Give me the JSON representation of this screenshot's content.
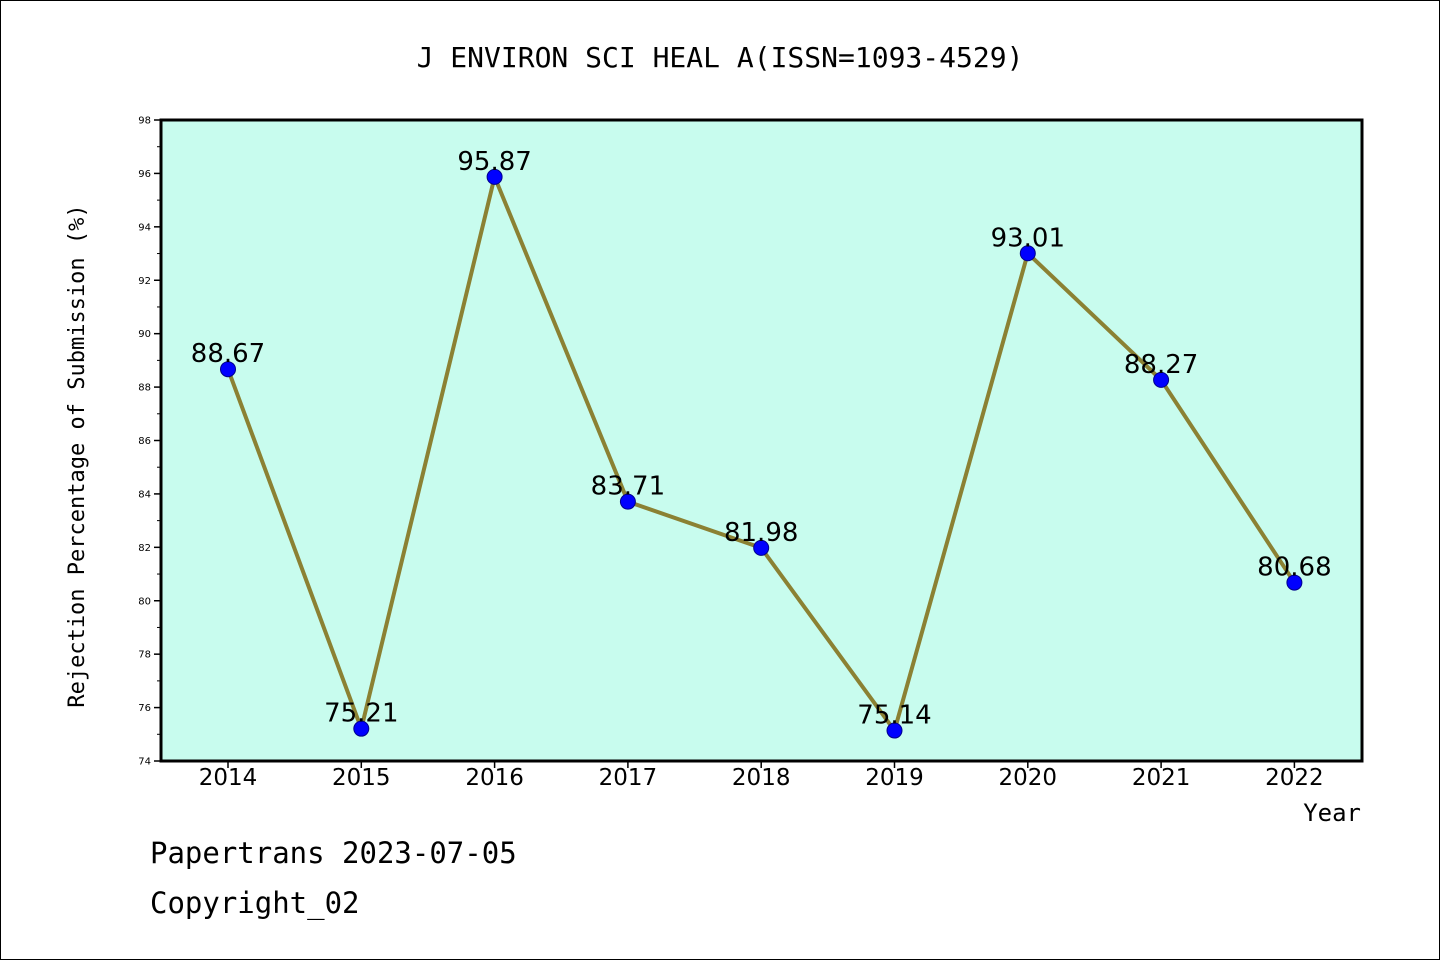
{
  "chart_data": {
    "type": "line",
    "title": "J ENVIRON SCI HEAL A(ISSN=1093-4529)",
    "xlabel": "Year",
    "ylabel": "Rejection Percentage of Submission (%)",
    "categories": [
      "2014",
      "2015",
      "2016",
      "2017",
      "2018",
      "2019",
      "2020",
      "2021",
      "2022"
    ],
    "series": [
      {
        "values": [
          88.67,
          75.21,
          95.87,
          83.71,
          81.98,
          75.14,
          93.01,
          88.27,
          80.68
        ],
        "data_labels": [
          "88.67",
          "75.21",
          "95.87",
          "83.71",
          "81.98",
          "75.14",
          "93.01",
          "88.27",
          "80.68"
        ]
      }
    ],
    "ylim": [
      74,
      98
    ],
    "yticks": [
      "74",
      "76",
      "78",
      "80",
      "82",
      "84",
      "86",
      "88",
      "90",
      "92",
      "94",
      "96",
      "98"
    ],
    "grid": false,
    "legend": "none",
    "colors": {
      "plot_background": "#c8fcee",
      "line": "#8b8133",
      "marker": "#0000ff",
      "marker_edge": "#00008b",
      "axis": "#000000"
    }
  },
  "footer": {
    "line1": "Papertrans 2023-07-05",
    "line2": "Copyright_02"
  }
}
